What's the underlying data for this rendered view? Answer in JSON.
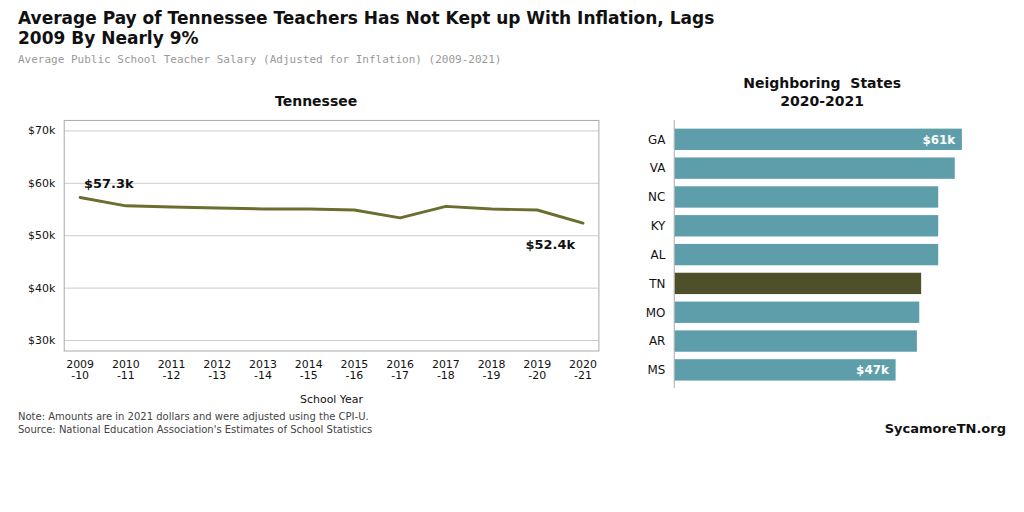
{
  "title": "Average Pay of Tennessee Teachers Has Not Kept up With Inflation, Lags\n2009 By Nearly 9%",
  "subtitle": "Average Public School Teacher Salary (Adjusted for Inflation) (2009-2021)",
  "footnote": "Note: Amounts are in 2021 dollars and were adjusted using the CPI-U.\nSource: National Education Association's Estimates of School Statistics",
  "credit": "SycamoreTN.org",
  "chart_data": [
    {
      "type": "line",
      "title": "Tennessee",
      "categories": [
        "2009\n-10",
        "2010\n-11",
        "2011\n-12",
        "2012\n-13",
        "2013\n-14",
        "2014\n-15",
        "2015\n-16",
        "2016\n-17",
        "2017\n-18",
        "2018\n-19",
        "2019\n-20",
        "2020\n-21"
      ],
      "values": [
        57300,
        55700,
        55500,
        55300,
        55100,
        55100,
        54900,
        53400,
        55600,
        55100,
        54900,
        52400
      ],
      "color": "#6b6e2f",
      "xlabel": "School Year",
      "ylim": [
        28000,
        72000
      ],
      "yticks": [
        {
          "value": 30000,
          "label": "$30k"
        },
        {
          "value": 40000,
          "label": "$40k"
        },
        {
          "value": 50000,
          "label": "$50k"
        },
        {
          "value": 60000,
          "label": "$60k"
        },
        {
          "value": 70000,
          "label": "$70k"
        }
      ],
      "grid": true,
      "annotations": [
        {
          "text": "$57.3k",
          "x": "2009\n-10",
          "y": 57300
        },
        {
          "text": "$52.4k",
          "x": "2020\n-21",
          "y": 52400
        }
      ]
    },
    {
      "type": "bar",
      "orientation": "horizontal",
      "title": "Neighboring  States",
      "subtitle": "2020-2021",
      "categories": [
        "GA",
        "VA",
        "NC",
        "KY",
        "AL",
        "TN",
        "MO",
        "AR",
        "MS"
      ],
      "values": [
        61000,
        59500,
        56000,
        56000,
        56000,
        52400,
        52000,
        51500,
        47000
      ],
      "colors": [
        "#5d9eaa",
        "#5d9eaa",
        "#5d9eaa",
        "#5d9eaa",
        "#5d9eaa",
        "#4d5028",
        "#5d9eaa",
        "#5d9eaa",
        "#5d9eaa"
      ],
      "xlim": [
        0,
        68000
      ],
      "tick_labels": "y",
      "annotations": [
        {
          "text": "$61k",
          "category": "GA",
          "value": 61000
        },
        {
          "text": "$47k",
          "category": "MS",
          "value": 47000
        }
      ]
    }
  ]
}
